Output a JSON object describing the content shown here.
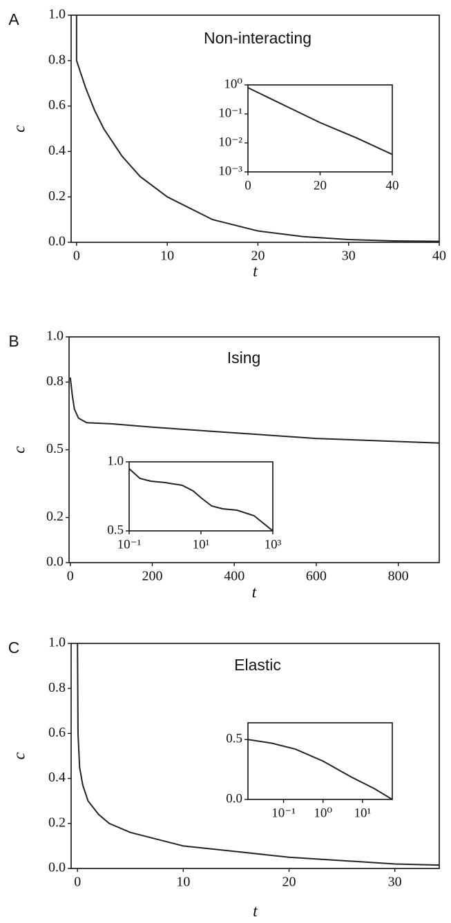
{
  "chart_data": [
    {
      "type": "line",
      "panel_label": "A",
      "annotation": "Non-interacting",
      "xlabel": "t",
      "ylabel": "c",
      "color": "#222222",
      "x": [
        0,
        0,
        1,
        2,
        3,
        5,
        7,
        10,
        15,
        20,
        25,
        30,
        35,
        40
      ],
      "values": [
        1.0,
        0.8,
        0.68,
        0.58,
        0.5,
        0.38,
        0.29,
        0.2,
        0.1,
        0.05,
        0.025,
        0.012,
        0.006,
        0.004
      ],
      "xlim": [
        -0.6,
        40
      ],
      "xticks": [
        0,
        10,
        20,
        30,
        40
      ],
      "ylim": [
        0,
        1
      ],
      "yticks": [
        {
          "value": 0,
          "label": "0.0"
        },
        0.2,
        0.4,
        0.6,
        0.8,
        {
          "value": 1,
          "label": "1.0"
        }
      ]
    },
    {
      "type": "line",
      "color": "#222222",
      "yscale": "log",
      "x": [
        0,
        5,
        10,
        20,
        30,
        40
      ],
      "values": [
        0.8,
        0.4,
        0.2,
        0.05,
        0.015,
        0.004
      ],
      "xlim": [
        0,
        40
      ],
      "xticks": [
        0,
        20,
        40
      ],
      "ylim": [
        0.001,
        1
      ],
      "yticks": [
        {
          "value": 1,
          "label": "10⁰"
        },
        {
          "value": 0.1,
          "label": "10⁻¹"
        },
        {
          "value": 0.01,
          "label": "10⁻²"
        },
        {
          "value": 0.001,
          "label": "10⁻³"
        }
      ]
    },
    {
      "type": "line",
      "panel_label": "B",
      "annotation": "Ising",
      "xlabel": "t",
      "ylabel": "c",
      "color": "#222222",
      "x": [
        0,
        5,
        10,
        20,
        30,
        40,
        100,
        200,
        400,
        600,
        900
      ],
      "values": [
        0.82,
        0.74,
        0.68,
        0.64,
        0.63,
        0.62,
        0.615,
        0.6,
        0.575,
        0.55,
        0.53
      ],
      "xlim": [
        -3,
        900
      ],
      "xticks": [
        0,
        200,
        400,
        600,
        800
      ],
      "ylim": [
        0,
        1
      ],
      "yticks": [
        {
          "value": 0,
          "label": "0.0"
        },
        0.2,
        0.5,
        0.8,
        {
          "value": 1,
          "label": "1.0"
        }
      ]
    },
    {
      "type": "line",
      "color": "#222222",
      "xscale": "log",
      "x": [
        0.1,
        0.2,
        0.4,
        1,
        3,
        6,
        10,
        20,
        40,
        100,
        300,
        1000
      ],
      "values": [
        0.95,
        0.88,
        0.86,
        0.85,
        0.83,
        0.79,
        0.74,
        0.68,
        0.66,
        0.65,
        0.61,
        0.5
      ],
      "xlim": [
        0.1,
        1000
      ],
      "xticks": [
        {
          "value": 0.1,
          "label": "10⁻¹"
        },
        {
          "value": 10,
          "label": "10¹"
        },
        {
          "value": 1000,
          "label": "10³"
        }
      ],
      "ylim": [
        0.5,
        1
      ],
      "yticks": [
        0.5,
        {
          "value": 1,
          "label": "1.0"
        }
      ]
    },
    {
      "type": "line",
      "panel_label": "C",
      "annotation": "Elastic",
      "xlabel": "t",
      "ylabel": "c",
      "color": "#222222",
      "x": [
        0,
        0.05,
        0.2,
        0.5,
        1,
        2,
        3,
        5,
        10,
        15,
        20,
        25,
        30,
        34.2
      ],
      "values": [
        1,
        0.6,
        0.45,
        0.37,
        0.3,
        0.24,
        0.2,
        0.16,
        0.1,
        0.075,
        0.05,
        0.035,
        0.02,
        0.015
      ],
      "xlim": [
        -0.6,
        34.2
      ],
      "xticks": [
        0,
        10,
        20,
        30
      ],
      "ylim": [
        0,
        1
      ],
      "yticks": [
        {
          "value": 0,
          "label": "0.0"
        },
        0.2,
        0.4,
        0.6,
        0.8,
        {
          "value": 1,
          "label": "1.0"
        }
      ]
    },
    {
      "type": "line",
      "color": "#222222",
      "xscale": "log",
      "x": [
        0.0125,
        0.05,
        0.2,
        1,
        5,
        20,
        57
      ],
      "values": [
        0.5,
        0.47,
        0.42,
        0.32,
        0.19,
        0.09,
        0.0
      ],
      "xlim": [
        0.0125,
        57
      ],
      "xticks": [
        {
          "value": 0.1,
          "label": "10⁻¹"
        },
        {
          "value": 1,
          "label": "10⁰"
        },
        {
          "value": 10,
          "label": "10¹"
        }
      ],
      "ylim": [
        0,
        0.64
      ],
      "yticks": [
        {
          "value": 0,
          "label": "0.0"
        },
        0.5
      ]
    }
  ]
}
